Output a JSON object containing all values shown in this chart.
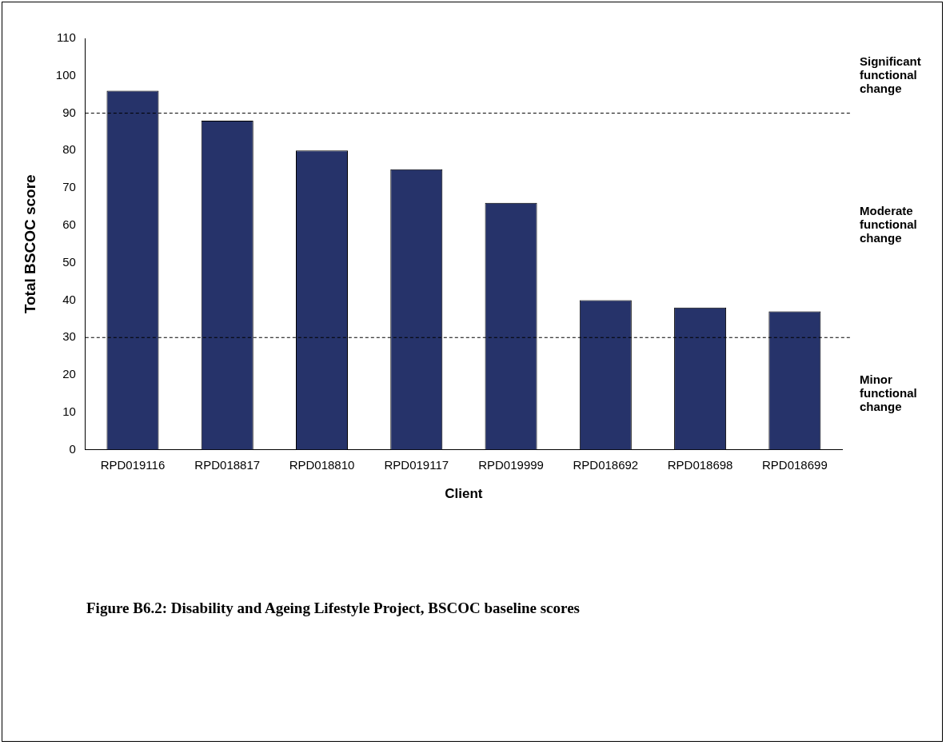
{
  "chart_data": {
    "type": "bar",
    "xlabel": "Client",
    "ylabel": "Total BSCOC score",
    "categories": [
      "RPD019116",
      "RPD018817",
      "RPD018810",
      "RPD019117",
      "RPD019999",
      "RPD018692",
      "RPD018698",
      "RPD018699"
    ],
    "values": [
      96,
      88,
      80,
      75,
      66,
      40,
      38,
      37
    ],
    "color": "#26336a",
    "ylim": [
      0,
      110
    ],
    "yticks": [
      0,
      10,
      20,
      30,
      40,
      50,
      60,
      70,
      80,
      90,
      100,
      110
    ],
    "ref_lines": [
      {
        "axis": "y",
        "value": 90,
        "line_style": "dashed"
      },
      {
        "axis": "y",
        "value": 30,
        "line_style": "dashed"
      }
    ],
    "annotations": [
      "Significant functional change",
      "Moderate functional change",
      "Minor functional change",
      "Figure B6.2: Disability and Ageing Lifestyle Project, BSCOC baseline scores"
    ]
  }
}
